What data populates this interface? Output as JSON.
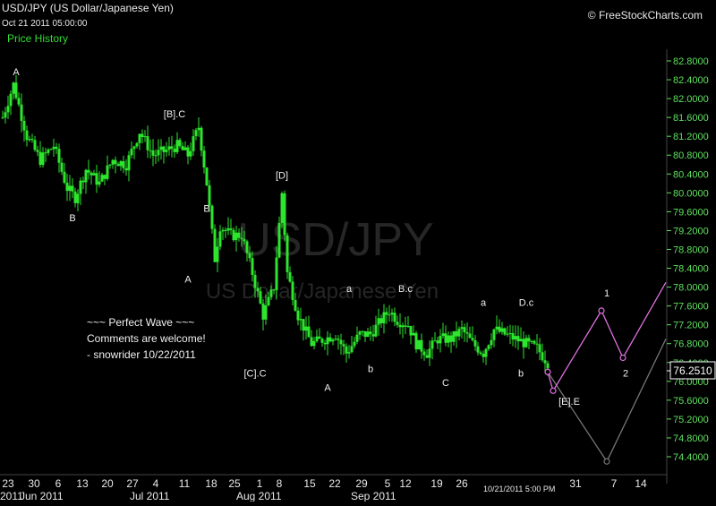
{
  "header": {
    "symbol_title": "USD/JPY (US Dollar/Japanese Yen)",
    "timestamp": "Oct 21 2011 05:00:00",
    "copyright": "© FreeStockCharts.com",
    "panel_label": "Price History"
  },
  "watermark": {
    "symbol": "USD/JPY",
    "name": "US Dollar/Japanese Yen"
  },
  "comment": {
    "lines": [
      "~~~ Perfect Wave ~~~",
      "Comments are welcome!",
      "- snowrider  10/22/2011"
    ]
  },
  "last_price": "76.2510",
  "footer_time": "10/21/2011 5:00 PM",
  "colors": {
    "up": "#2ee52e",
    "projection": "#e070e0",
    "alt_projection": "#777777",
    "axis_text": "#5ee05e",
    "background": "#000000"
  },
  "chart_data": {
    "type": "candlestick",
    "y_axis": {
      "ylim": [
        74.0,
        83.2
      ],
      "ticks": [
        "82.8000",
        "82.4000",
        "82.0000",
        "81.6000",
        "81.2000",
        "80.8000",
        "80.4000",
        "80.0000",
        "79.6000",
        "79.2000",
        "78.8000",
        "78.4000",
        "78.0000",
        "77.6000",
        "77.2000",
        "76.8000",
        "76.4000",
        "76.0000",
        "75.6000",
        "75.2000",
        "74.8000",
        "74.4000"
      ]
    },
    "x_axis": {
      "tick_labels": [
        "23",
        "30",
        "6",
        "13",
        "20",
        "27",
        "4",
        "11",
        "18",
        "25",
        "1",
        "8",
        "15",
        "22",
        "29",
        "5",
        "12",
        "19",
        "26",
        "31",
        "7",
        "14"
      ],
      "month_labels": [
        "2011",
        "Jun 2011",
        "Jul 2011",
        "Aug 2011",
        "Sep 2011"
      ]
    },
    "price_path": [
      [
        0,
        81.6
      ],
      [
        4,
        82.3
      ],
      [
        9,
        81.2
      ],
      [
        14,
        80.7
      ],
      [
        19,
        81.0
      ],
      [
        24,
        80.1
      ],
      [
        27,
        79.9
      ],
      [
        31,
        80.5
      ],
      [
        36,
        80.2
      ],
      [
        41,
        80.7
      ],
      [
        46,
        80.6
      ],
      [
        51,
        81.3
      ],
      [
        56,
        80.8
      ],
      [
        61,
        80.9
      ],
      [
        65,
        81.0
      ],
      [
        69,
        80.8
      ],
      [
        73,
        81.4
      ],
      [
        76,
        80.2
      ],
      [
        79,
        78.6
      ],
      [
        81,
        79.3
      ],
      [
        85,
        79.1
      ],
      [
        89,
        79.1
      ],
      [
        93,
        78.3
      ],
      [
        97,
        77.4
      ],
      [
        101,
        78.0
      ],
      [
        104,
        80.0
      ],
      [
        106,
        78.3
      ],
      [
        110,
        77.4
      ],
      [
        115,
        76.8
      ],
      [
        120,
        76.9
      ],
      [
        124,
        77.0
      ],
      [
        128,
        76.6
      ],
      [
        133,
        77.0
      ],
      [
        137,
        77.0
      ],
      [
        141,
        77.3
      ],
      [
        144,
        77.5
      ],
      [
        147,
        77.3
      ],
      [
        151,
        77.2
      ],
      [
        154,
        76.8
      ],
      [
        158,
        76.6
      ],
      [
        162,
        76.9
      ],
      [
        167,
        76.9
      ],
      [
        171,
        77.1
      ],
      [
        175,
        76.8
      ],
      [
        179,
        76.6
      ],
      [
        183,
        77.1
      ],
      [
        187,
        77.0
      ],
      [
        191,
        76.9
      ],
      [
        195,
        76.8
      ],
      [
        199,
        76.7
      ],
      [
        203,
        76.4
      ]
    ],
    "projection": [
      [
        203,
        76.2
      ],
      [
        205,
        75.8
      ],
      [
        223,
        77.5
      ],
      [
        231,
        76.5
      ],
      [
        247,
        78.1
      ]
    ],
    "alt_projection": [
      [
        203,
        76.2
      ],
      [
        225,
        74.3
      ],
      [
        247,
        76.9
      ]
    ],
    "wave_labels": [
      {
        "label": "A",
        "x": 5,
        "y": 82.5
      },
      {
        "label": "B",
        "x": 26,
        "y": 79.4
      },
      {
        "label": "[B].C",
        "x": 64,
        "y": 81.6
      },
      {
        "label": "A",
        "x": 69,
        "y": 78.1
      },
      {
        "label": "B",
        "x": 76,
        "y": 79.6
      },
      {
        "label": "[D]",
        "x": 104,
        "y": 80.3
      },
      {
        "label": "[C].C",
        "x": 94,
        "y": 76.1
      },
      {
        "label": "A",
        "x": 121,
        "y": 75.8
      },
      {
        "label": "a",
        "x": 129,
        "y": 77.9
      },
      {
        "label": "b",
        "x": 137,
        "y": 76.2
      },
      {
        "label": "B.c",
        "x": 150,
        "y": 77.9
      },
      {
        "label": "C",
        "x": 165,
        "y": 75.9
      },
      {
        "label": "a",
        "x": 179,
        "y": 77.6
      },
      {
        "label": "D.c",
        "x": 195,
        "y": 77.6
      },
      {
        "label": "b",
        "x": 193,
        "y": 76.1
      },
      {
        "label": "[E].E",
        "x": 211,
        "y": 75.5
      },
      {
        "label": "1",
        "x": 225,
        "y": 77.8
      },
      {
        "label": "2",
        "x": 232,
        "y": 76.1
      }
    ]
  }
}
